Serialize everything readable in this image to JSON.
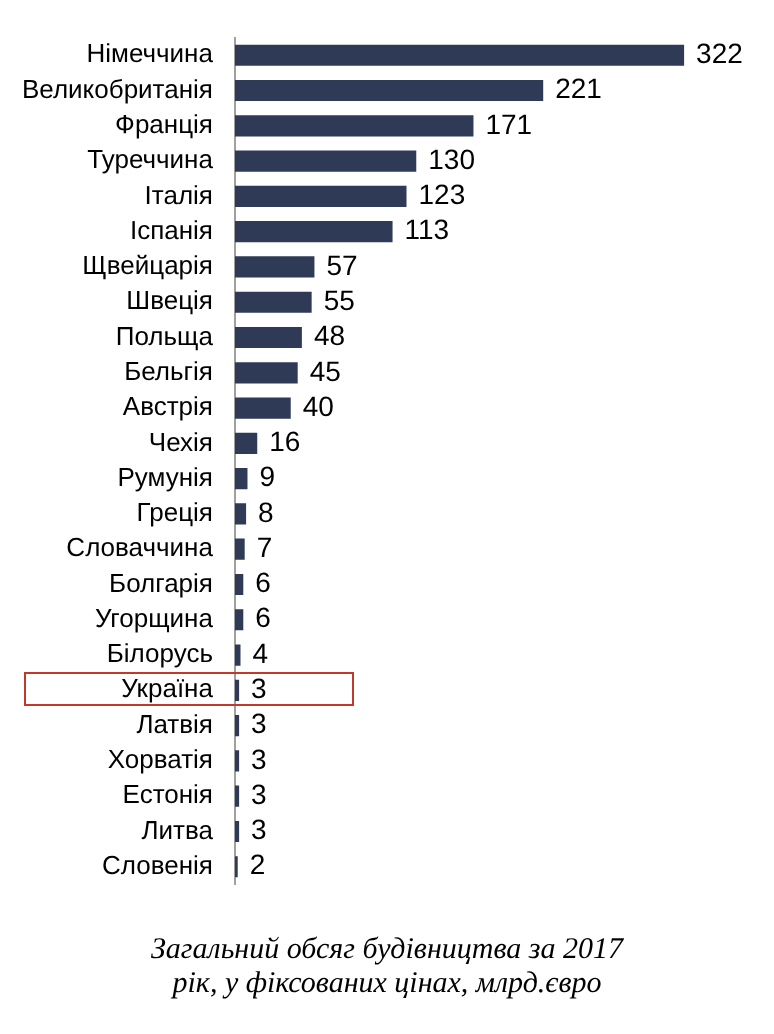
{
  "chart_data": {
    "type": "bar",
    "orientation": "horizontal",
    "data_labels": true,
    "tick_labels": "y",
    "legend": false,
    "categories": [
      "Німеччина",
      "Великобританія",
      "Франція",
      "Туреччина",
      "Італія",
      "Іспанія",
      "Щвейцарія",
      "Швеція",
      "Польща",
      "Бельгія",
      "Австрія",
      "Чехія",
      "Румунія",
      "Греція",
      "Словаччина",
      "Болгарія",
      "Угорщина",
      "Білорусь",
      "Україна",
      "Латвія",
      "Хорватія",
      "Естонія",
      "Литва",
      "Словенія"
    ],
    "values": [
      322,
      221,
      171,
      130,
      123,
      113,
      57,
      55,
      48,
      45,
      40,
      16,
      9,
      8,
      7,
      6,
      6,
      4,
      3,
      3,
      3,
      3,
      3,
      2
    ],
    "color": "#2f3a56",
    "annotations": [
      "Загальний обсяг будівництва за 2017 рік, у фіксованих цінах, млрд.євро"
    ]
  }
}
